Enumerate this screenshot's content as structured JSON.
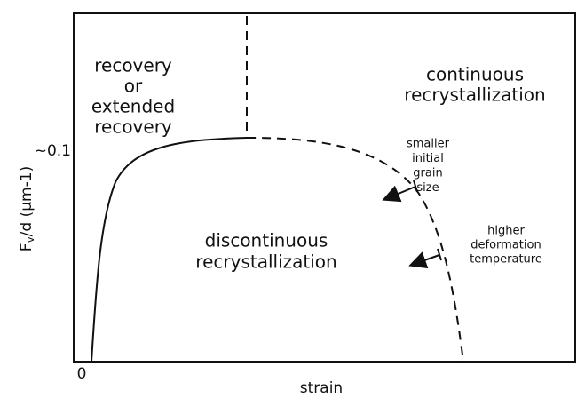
{
  "regions": [
    {
      "lines": [
        "recovery",
        "or",
        "extended",
        "recovery"
      ]
    },
    {
      "lines": [
        "continuous",
        "recrystallization"
      ]
    },
    {
      "lines": [
        "discontinuous",
        "recrystallization"
      ]
    }
  ],
  "annotations": [
    {
      "lines": [
        "smaller",
        "initial",
        "grain",
        "size"
      ]
    },
    {
      "lines": [
        "higher",
        "deformation",
        "temperature"
      ]
    }
  ],
  "axes": {
    "y_label": {
      "main": "F",
      "sub": "v",
      "rest": "/d (μm-1)"
    },
    "y_tick": "~0.1",
    "origin": "0",
    "x_label": "strain"
  }
}
